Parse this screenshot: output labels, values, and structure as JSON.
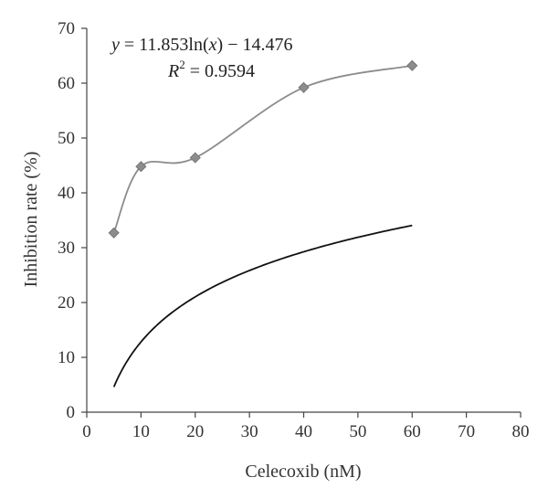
{
  "chart_data": {
    "type": "scatter",
    "title": "",
    "xlabel": "Celecoxib (nM)",
    "ylabel": "Inhibition rate (%)",
    "xlim": [
      0,
      80
    ],
    "ylim": [
      0,
      70
    ],
    "x_ticks": [
      0,
      10,
      20,
      30,
      40,
      50,
      60,
      70,
      80
    ],
    "y_ticks": [
      0,
      10,
      20,
      30,
      40,
      50,
      60,
      70
    ],
    "grid": false,
    "legend": "none",
    "series": [
      {
        "marker": "diamond",
        "line": "smoothed",
        "color": "#8c8c8c",
        "points": [
          {
            "x": 5,
            "y": 32.7
          },
          {
            "x": 10,
            "y": 44.8
          },
          {
            "x": 20,
            "y": 46.4
          },
          {
            "x": 40,
            "y": 59.2
          },
          {
            "x": 60,
            "y": 63.2
          }
        ]
      }
    ],
    "trendline": {
      "kind": "logarithmic",
      "a": 11.853,
      "b": -14.476,
      "x_range": [
        5,
        60
      ],
      "color": "#111111"
    },
    "annotations": {
      "equation_parts": [
        "y",
        " = 11.853ln(",
        "x",
        ") − 14.476"
      ],
      "r2_parts": [
        "R",
        "2",
        " = 0.9594"
      ]
    }
  }
}
